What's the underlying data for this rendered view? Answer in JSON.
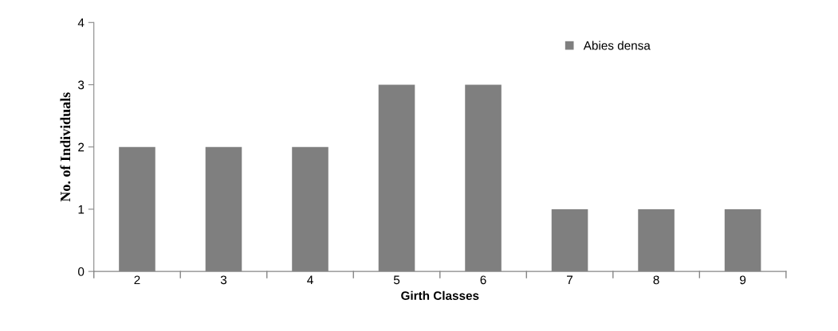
{
  "chart_data": {
    "type": "bar",
    "xlabel": "Girth Classes",
    "ylabel": "No. of Individuals",
    "categories": [
      "2",
      "3",
      "4",
      "5",
      "6",
      "7",
      "8",
      "9"
    ],
    "series": [
      {
        "name": "Abies densa",
        "color": "#7f7f7f",
        "values": [
          2,
          2,
          2,
          3,
          3,
          1,
          1,
          1
        ]
      }
    ],
    "ylim": [
      0,
      4
    ],
    "yticks": [
      0,
      1,
      2,
      3,
      4
    ],
    "grid": false,
    "legend": "top right"
  }
}
